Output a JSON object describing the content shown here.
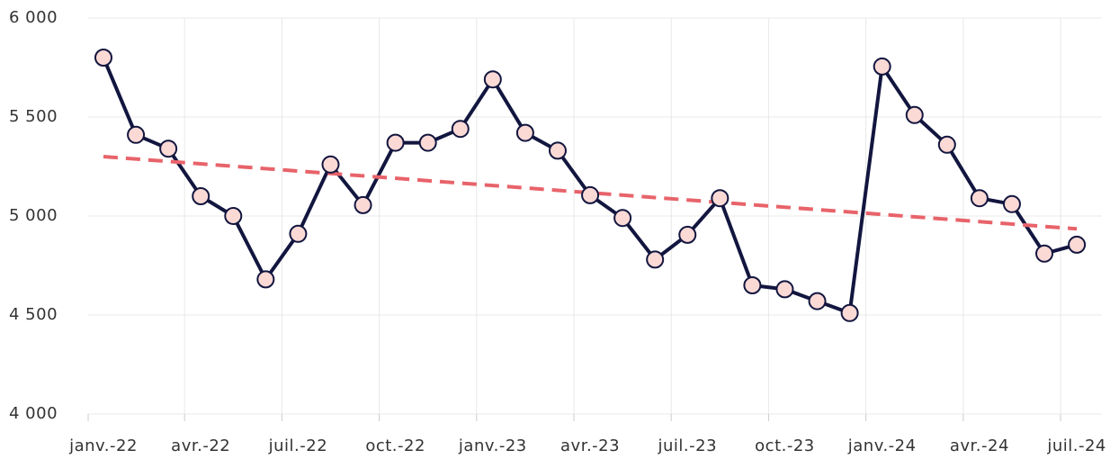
{
  "chart_data": {
    "type": "line",
    "categories": [
      "janv.-22",
      null,
      null,
      "avr.-22",
      null,
      null,
      "juil.-22",
      null,
      null,
      "oct.-22",
      null,
      null,
      "janv.-23",
      null,
      null,
      "avr.-23",
      null,
      null,
      "juil.-23",
      null,
      null,
      "oct.-23",
      null,
      null,
      "janv.-24",
      null,
      null,
      "avr.-24",
      null,
      null,
      "juil.-24"
    ],
    "series": [
      {
        "color": "#12163f",
        "marker_color": "#fbd9d5",
        "values": [
          5800,
          5410,
          5340,
          5100,
          5000,
          4680,
          4910,
          5260,
          5055,
          5370,
          5370,
          5440,
          5690,
          5420,
          5330,
          5105,
          4990,
          4780,
          4905,
          5090,
          4650,
          4630,
          4570,
          4510,
          5755,
          5510,
          5360,
          5090,
          5060,
          4810,
          4855
        ]
      }
    ],
    "trend": {
      "start": 5300,
      "end": 4935,
      "color": "#e8636a"
    },
    "ylim": [
      4000,
      6000
    ],
    "yticks": [
      {
        "value": 4000,
        "label": "4 000"
      },
      {
        "value": 4500,
        "label": "4 500"
      },
      {
        "value": 5000,
        "label": "5 000"
      },
      {
        "value": 5500,
        "label": "5 500"
      },
      {
        "value": 6000,
        "label": "6 000"
      }
    ],
    "grid": true
  }
}
